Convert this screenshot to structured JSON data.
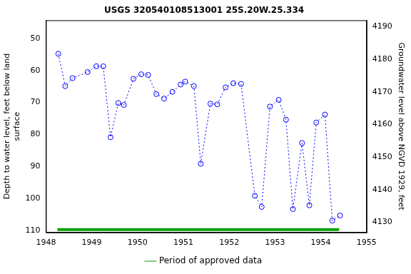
{
  "chart_data": {
    "type": "scatter",
    "title": "USGS 320540108513001 25S.20W.25.334",
    "x_label": "",
    "y_label": [
      "Depth to water level, feet below land",
      "surface"
    ],
    "y2_label": "Groundwater level above NGVD 1929, feet",
    "xlim": [
      1948,
      1955
    ],
    "xticks": [
      1948,
      1949,
      1950,
      1951,
      1952,
      1953,
      1954,
      1955
    ],
    "ylim": [
      44.3,
      110.7
    ],
    "yticks": [
      50,
      60,
      70,
      80,
      90,
      100,
      110
    ],
    "y2lim": [
      4126.9,
      4192.0
    ],
    "y2ticks": [
      4130,
      4140,
      4150,
      4160,
      4170,
      4180,
      4190
    ],
    "grid": false,
    "legend": "bottom",
    "series": [
      {
        "color": "#0000ff",
        "marker": "circle",
        "line_style": "dotted",
        "x": [
          1948.27,
          1948.42,
          1948.58,
          1948.91,
          1949.1,
          1949.25,
          1949.41,
          1949.58,
          1949.7,
          1949.91,
          1950.08,
          1950.23,
          1950.41,
          1950.58,
          1950.76,
          1950.94,
          1951.04,
          1951.23,
          1951.38,
          1951.59,
          1951.74,
          1951.92,
          1952.09,
          1952.26,
          1952.56,
          1952.71,
          1952.89,
          1953.08,
          1953.24,
          1953.39,
          1953.59,
          1953.75,
          1953.9,
          1954.09,
          1954.25,
          1954.42
        ],
        "values": [
          54.8,
          64.9,
          62.4,
          60.5,
          58.7,
          58.7,
          80.9,
          70.2,
          70.8,
          62.6,
          61.2,
          61.4,
          67.4,
          68.8,
          66.7,
          64.4,
          63.5,
          64.9,
          89.2,
          70.4,
          70.6,
          65.3,
          64.0,
          64.2,
          99.2,
          102.7,
          71.3,
          69.2,
          75.4,
          103.4,
          82.7,
          102.2,
          76.3,
          73.8,
          107.0,
          105.4
        ]
      },
      {
        "name": "Period of approved data",
        "color": "#00a000",
        "marker": "none",
        "line_style": "solid",
        "x": [
          1948.25,
          1954.4
        ],
        "values": [
          109.8,
          109.8
        ]
      }
    ]
  }
}
